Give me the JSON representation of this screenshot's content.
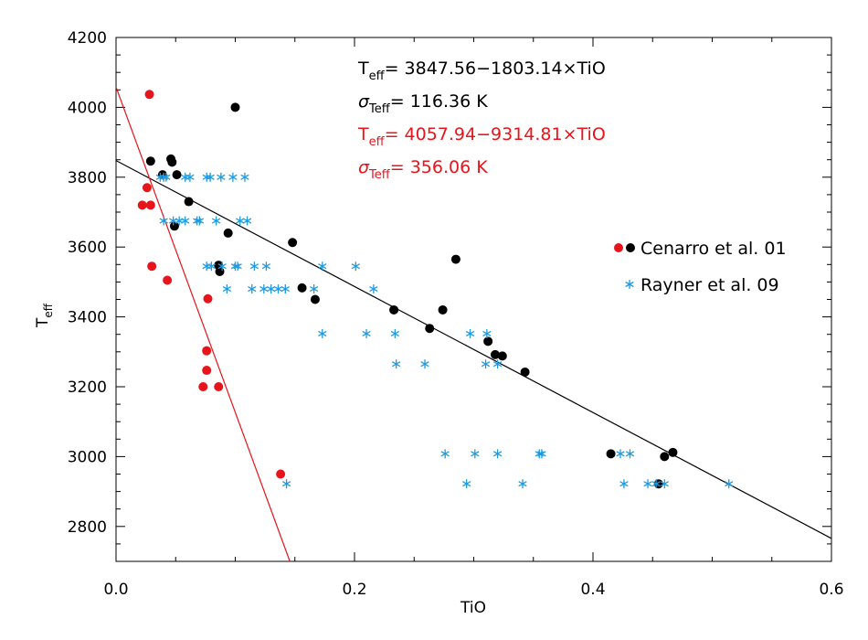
{
  "chart_data": {
    "type": "scatter",
    "xlabel": "TiO",
    "ylabel": {
      "main": "T",
      "sub": "eff"
    },
    "xlim": [
      0.0,
      0.6
    ],
    "ylim": [
      2700,
      4200
    ],
    "x_ticks": [
      0.0,
      0.2,
      0.4,
      0.6
    ],
    "x_tick_labels": [
      "0.0",
      "0.2",
      "0.4",
      "0.6"
    ],
    "y_ticks": [
      2800,
      3000,
      3200,
      3400,
      3600,
      3800,
      4000,
      4200
    ],
    "y_tick_labels": [
      "2800",
      "3000",
      "3200",
      "3400",
      "3600",
      "3800",
      "4000",
      "4200"
    ],
    "grid": false,
    "legend": {
      "placement": "right",
      "entries": [
        {
          "label": "Cenarro et al. 01",
          "marker": "filled-circle",
          "colors": [
            "#e8141b",
            "#000000"
          ]
        },
        {
          "label": "Rayner et al. 09",
          "marker": "asterisk",
          "colors": [
            "#1f9ae0"
          ]
        }
      ]
    },
    "annotations": [
      {
        "color": "#000000",
        "sym": "T",
        "sub": "eff",
        "text": "= 3847.56−1803.14×TiO"
      },
      {
        "color": "#000000",
        "sym": "σ",
        "sub": "Teff",
        "text": "= 116.36 K"
      },
      {
        "color": "#e8141b",
        "sym": "T",
        "sub": "eff",
        "text": "= 4057.94−9314.81×TiO"
      },
      {
        "color": "#e8141b",
        "sym": "σ",
        "sub": "Teff",
        "text": "= 356.06 K"
      }
    ],
    "fit_lines": [
      {
        "color": "#000000",
        "intercept": 3847.56,
        "slope": -1803.14
      },
      {
        "color": "#e8141b",
        "intercept": 4057.94,
        "slope": -9314.81
      }
    ],
    "series": [
      {
        "name": "Cenarro et al. 01",
        "marker": "filled-circle",
        "color": "#000000",
        "points": [
          [
            0.029,
            3846
          ],
          [
            0.039,
            3807
          ],
          [
            0.046,
            3852
          ],
          [
            0.047,
            3843
          ],
          [
            0.049,
            3660
          ],
          [
            0.051,
            3807
          ],
          [
            0.061,
            3730
          ],
          [
            0.086,
            3548
          ],
          [
            0.087,
            3530
          ],
          [
            0.094,
            3640
          ],
          [
            0.1,
            4000
          ],
          [
            0.148,
            3613
          ],
          [
            0.156,
            3483
          ],
          [
            0.167,
            3450
          ],
          [
            0.233,
            3420
          ],
          [
            0.263,
            3367
          ],
          [
            0.274,
            3420
          ],
          [
            0.285,
            3565
          ],
          [
            0.312,
            3330
          ],
          [
            0.318,
            3292
          ],
          [
            0.324,
            3288
          ],
          [
            0.343,
            3242
          ],
          [
            0.415,
            3008
          ],
          [
            0.455,
            2922
          ],
          [
            0.46,
            3000
          ],
          [
            0.467,
            3012
          ]
        ]
      },
      {
        "name": "Cenarro et al. 01",
        "marker": "filled-circle",
        "color": "#e8141b",
        "points": [
          [
            0.028,
            4037
          ],
          [
            0.026,
            3770
          ],
          [
            0.022,
            3720
          ],
          [
            0.029,
            3720
          ],
          [
            0.03,
            3545
          ],
          [
            0.043,
            3505
          ],
          [
            0.077,
            3452
          ],
          [
            0.076,
            3303
          ],
          [
            0.076,
            3247
          ],
          [
            0.073,
            3200
          ],
          [
            0.086,
            3200
          ],
          [
            0.138,
            2950
          ]
        ]
      },
      {
        "name": "Rayner et al. 09",
        "marker": "asterisk",
        "color": "#1f9ae0",
        "points": [
          [
            0.037,
            3800
          ],
          [
            0.04,
            3800
          ],
          [
            0.042,
            3800
          ],
          [
            0.058,
            3800
          ],
          [
            0.062,
            3800
          ],
          [
            0.076,
            3800
          ],
          [
            0.079,
            3800
          ],
          [
            0.088,
            3800
          ],
          [
            0.098,
            3800
          ],
          [
            0.108,
            3800
          ],
          [
            0.04,
            3675
          ],
          [
            0.048,
            3675
          ],
          [
            0.053,
            3675
          ],
          [
            0.058,
            3675
          ],
          [
            0.068,
            3675
          ],
          [
            0.07,
            3675
          ],
          [
            0.084,
            3675
          ],
          [
            0.104,
            3675
          ],
          [
            0.11,
            3675
          ],
          [
            0.076,
            3545
          ],
          [
            0.08,
            3545
          ],
          [
            0.089,
            3545
          ],
          [
            0.1,
            3545
          ],
          [
            0.102,
            3545
          ],
          [
            0.116,
            3545
          ],
          [
            0.126,
            3545
          ],
          [
            0.173,
            3545
          ],
          [
            0.201,
            3545
          ],
          [
            0.093,
            3480
          ],
          [
            0.114,
            3480
          ],
          [
            0.124,
            3480
          ],
          [
            0.13,
            3480
          ],
          [
            0.136,
            3480
          ],
          [
            0.142,
            3480
          ],
          [
            0.166,
            3480
          ],
          [
            0.216,
            3480
          ],
          [
            0.173,
            3352
          ],
          [
            0.21,
            3352
          ],
          [
            0.234,
            3352
          ],
          [
            0.297,
            3352
          ],
          [
            0.311,
            3352
          ],
          [
            0.235,
            3265
          ],
          [
            0.259,
            3265
          ],
          [
            0.31,
            3265
          ],
          [
            0.32,
            3265
          ],
          [
            0.276,
            3008
          ],
          [
            0.301,
            3008
          ],
          [
            0.32,
            3008
          ],
          [
            0.355,
            3008
          ],
          [
            0.357,
            3008
          ],
          [
            0.423,
            3008
          ],
          [
            0.431,
            3008
          ],
          [
            0.143,
            2922
          ],
          [
            0.294,
            2922
          ],
          [
            0.341,
            2922
          ],
          [
            0.426,
            2922
          ],
          [
            0.446,
            2922
          ],
          [
            0.453,
            2922
          ],
          [
            0.46,
            2922
          ],
          [
            0.514,
            2922
          ]
        ]
      }
    ]
  }
}
